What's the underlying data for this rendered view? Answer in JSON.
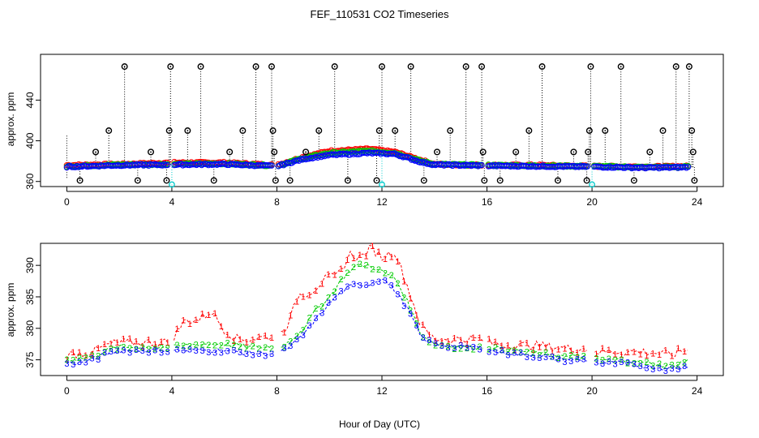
{
  "title": "FEF_110531  CO2 Timeseries",
  "xlabel": "Hour of Day (UTC)",
  "colors": {
    "black": "#000000",
    "red": "#ff0000",
    "green": "#00cc00",
    "blue": "#0000ff",
    "cyan": "#00cccc"
  },
  "chart_data": [
    {
      "type": "scatter",
      "name": "top-panel",
      "ylabel": "approx. ppm",
      "xlim": [
        -1,
        25
      ],
      "ylim": [
        355,
        485
      ],
      "x_ticks": [
        "0",
        "4",
        "8",
        "12",
        "16",
        "20",
        "24"
      ],
      "y_ticks": [
        "360",
        "400",
        "440"
      ],
      "spikes": [
        {
          "x": 0.5,
          "y": 361
        },
        {
          "x": 1.1,
          "y": 389
        },
        {
          "x": 1.6,
          "y": 410
        },
        {
          "x": 2.2,
          "y": 473
        },
        {
          "x": 2.7,
          "y": 361
        },
        {
          "x": 3.2,
          "y": 389
        },
        {
          "x": 3.8,
          "y": 361
        },
        {
          "x": 3.9,
          "y": 410
        },
        {
          "x": 3.95,
          "y": 473
        },
        {
          "x": 4.6,
          "y": 410
        },
        {
          "x": 5.1,
          "y": 473
        },
        {
          "x": 5.6,
          "y": 361
        },
        {
          "x": 6.2,
          "y": 389
        },
        {
          "x": 6.7,
          "y": 410
        },
        {
          "x": 7.2,
          "y": 473
        },
        {
          "x": 7.8,
          "y": 473
        },
        {
          "x": 7.85,
          "y": 410
        },
        {
          "x": 7.9,
          "y": 389
        },
        {
          "x": 7.95,
          "y": 361
        },
        {
          "x": 8.5,
          "y": 361
        },
        {
          "x": 9.1,
          "y": 389
        },
        {
          "x": 9.6,
          "y": 410
        },
        {
          "x": 10.2,
          "y": 473
        },
        {
          "x": 10.7,
          "y": 361
        },
        {
          "x": 11.8,
          "y": 361
        },
        {
          "x": 11.9,
          "y": 410
        },
        {
          "x": 12.0,
          "y": 473
        },
        {
          "x": 12.5,
          "y": 410
        },
        {
          "x": 13.1,
          "y": 473
        },
        {
          "x": 13.6,
          "y": 361
        },
        {
          "x": 14.1,
          "y": 389
        },
        {
          "x": 14.6,
          "y": 410
        },
        {
          "x": 15.2,
          "y": 473
        },
        {
          "x": 15.8,
          "y": 473
        },
        {
          "x": 15.85,
          "y": 389
        },
        {
          "x": 15.9,
          "y": 361
        },
        {
          "x": 16.5,
          "y": 361
        },
        {
          "x": 17.1,
          "y": 389
        },
        {
          "x": 17.6,
          "y": 410
        },
        {
          "x": 18.1,
          "y": 473
        },
        {
          "x": 18.7,
          "y": 361
        },
        {
          "x": 19.3,
          "y": 389
        },
        {
          "x": 19.8,
          "y": 361
        },
        {
          "x": 19.85,
          "y": 389
        },
        {
          "x": 19.9,
          "y": 410
        },
        {
          "x": 19.95,
          "y": 473
        },
        {
          "x": 20.5,
          "y": 410
        },
        {
          "x": 21.1,
          "y": 473
        },
        {
          "x": 21.6,
          "y": 361
        },
        {
          "x": 22.2,
          "y": 389
        },
        {
          "x": 22.7,
          "y": 410
        },
        {
          "x": 23.2,
          "y": 473
        },
        {
          "x": 23.7,
          "y": 473
        },
        {
          "x": 23.8,
          "y": 410
        },
        {
          "x": 23.85,
          "y": 389
        },
        {
          "x": 23.9,
          "y": 361
        }
      ],
      "dips": [
        {
          "x": 4.0,
          "y": 357
        },
        {
          "x": 12.0,
          "y": 357
        },
        {
          "x": 20.0,
          "y": 357
        }
      ],
      "baseline_series": [
        {
          "name": "red",
          "color": "#ff0000",
          "values": [
            [
              0,
              376
            ],
            [
              2,
              377
            ],
            [
              4,
              378.5
            ],
            [
              6,
              378.5
            ],
            [
              8,
              376
            ],
            [
              9,
              384
            ],
            [
              10,
              390
            ],
            [
              11.5,
              392
            ],
            [
              12.5,
              389
            ],
            [
              13.5,
              381
            ],
            [
              14,
              377
            ],
            [
              16,
              376
            ],
            [
              18,
              376
            ],
            [
              20,
              375
            ],
            [
              22,
              374.5
            ],
            [
              23.7,
              375
            ]
          ]
        },
        {
          "name": "green",
          "color": "#00cc00",
          "values": [
            [
              0,
              375
            ],
            [
              2,
              376.5
            ],
            [
              4,
              377
            ],
            [
              6,
              377.5
            ],
            [
              8,
              375.5
            ],
            [
              9,
              383
            ],
            [
              10,
              388
            ],
            [
              11.5,
              390
            ],
            [
              12.5,
              388
            ],
            [
              13.5,
              380
            ],
            [
              14,
              377
            ],
            [
              16,
              376
            ],
            [
              18,
              375.5
            ],
            [
              20,
              375
            ],
            [
              22,
              374
            ],
            [
              23.7,
              374.5
            ]
          ]
        },
        {
          "name": "blue",
          "color": "#0000ff",
          "values": [
            [
              0,
              374.5
            ],
            [
              2,
              376
            ],
            [
              4,
              376.5
            ],
            [
              6,
              377
            ],
            [
              8,
              375
            ],
            [
              9,
              382
            ],
            [
              10,
              386
            ],
            [
              11.5,
              388
            ],
            [
              12.5,
              387
            ],
            [
              13.5,
              379
            ],
            [
              14,
              376.5
            ],
            [
              16,
              375.5
            ],
            [
              18,
              375
            ],
            [
              20,
              374.5
            ],
            [
              22,
              373.5
            ],
            [
              23.7,
              374
            ]
          ]
        }
      ]
    },
    {
      "type": "line",
      "name": "bottom-panel",
      "ylabel": "approx. ppm",
      "xlim": [
        -1,
        25
      ],
      "ylim": [
        372.5,
        393.5
      ],
      "x_ticks": [
        "0",
        "4",
        "8",
        "12",
        "16",
        "20",
        "24"
      ],
      "y_ticks": [
        "375",
        "380",
        "385",
        "390"
      ],
      "series": [
        {
          "name": "1",
          "color": "#ff0000",
          "label": "1",
          "values": [
            [
              0,
              375.5
            ],
            [
              1,
              376
            ],
            [
              1.5,
              377
            ],
            [
              2,
              377.5
            ],
            [
              3,
              377.5
            ],
            [
              3.8,
              377.5
            ],
            [
              4,
              378
            ],
            [
              4.5,
              381
            ],
            [
              5,
              381
            ],
            [
              5.5,
              382.5
            ],
            [
              6,
              379.5
            ],
            [
              6.5,
              378
            ],
            [
              7,
              378
            ],
            [
              7.8,
              378.5
            ],
            [
              8,
              378
            ],
            [
              8.5,
              381
            ],
            [
              8.8,
              385
            ],
            [
              9.3,
              385.5
            ],
            [
              9.8,
              387.5
            ],
            [
              10.3,
              388
            ],
            [
              10.8,
              391.5
            ],
            [
              11.2,
              391
            ],
            [
              11.6,
              392.5
            ],
            [
              12,
              391
            ],
            [
              12.5,
              392
            ],
            [
              13,
              386
            ],
            [
              13.5,
              380
            ],
            [
              14,
              378
            ],
            [
              15,
              378
            ],
            [
              15.8,
              378
            ],
            [
              16,
              377.5
            ],
            [
              17,
              377
            ],
            [
              18,
              377
            ],
            [
              19,
              376.5
            ],
            [
              19.8,
              376.5
            ],
            [
              20,
              376
            ],
            [
              21,
              376
            ],
            [
              22,
              376
            ],
            [
              23,
              375.5
            ],
            [
              23.7,
              376.5
            ]
          ]
        },
        {
          "name": "2",
          "color": "#00cc00",
          "label": "2",
          "values": [
            [
              0,
              375
            ],
            [
              1,
              375.5
            ],
            [
              1.5,
              376.5
            ],
            [
              2,
              377
            ],
            [
              3,
              377
            ],
            [
              3.8,
              377
            ],
            [
              4,
              377
            ],
            [
              5,
              377.5
            ],
            [
              6,
              377.5
            ],
            [
              7,
              377
            ],
            [
              7.8,
              377
            ],
            [
              8,
              376.5
            ],
            [
              8.5,
              378
            ],
            [
              9,
              380
            ],
            [
              9.5,
              383
            ],
            [
              10,
              385
            ],
            [
              10.5,
              388
            ],
            [
              11,
              390
            ],
            [
              11.5,
              390
            ],
            [
              12,
              389
            ],
            [
              12.5,
              388
            ],
            [
              13,
              384
            ],
            [
              13.5,
              379
            ],
            [
              14,
              377.5
            ],
            [
              15,
              377
            ],
            [
              15.8,
              377
            ],
            [
              16,
              377
            ],
            [
              17,
              376.5
            ],
            [
              18,
              376
            ],
            [
              19,
              375.5
            ],
            [
              19.8,
              375.5
            ],
            [
              20,
              375
            ],
            [
              21,
              375
            ],
            [
              22,
              374.5
            ],
            [
              23,
              374
            ],
            [
              23.7,
              375
            ]
          ]
        },
        {
          "name": "3",
          "color": "#0000ff",
          "label": "3",
          "values": [
            [
              0,
              374.5
            ],
            [
              0.5,
              374.5
            ],
            [
              1,
              375
            ],
            [
              1.5,
              376
            ],
            [
              2,
              376.5
            ],
            [
              3,
              376.5
            ],
            [
              3.8,
              376.5
            ],
            [
              4,
              376.5
            ],
            [
              5,
              376.5
            ],
            [
              6,
              376.5
            ],
            [
              7,
              376
            ],
            [
              7.8,
              376
            ],
            [
              8,
              376
            ],
            [
              8.5,
              377
            ],
            [
              9,
              379
            ],
            [
              9.5,
              381.5
            ],
            [
              10,
              384
            ],
            [
              10.5,
              386
            ],
            [
              11,
              387
            ],
            [
              11.5,
              387
            ],
            [
              12,
              388
            ],
            [
              12.5,
              386
            ],
            [
              13,
              383
            ],
            [
              13.5,
              378.5
            ],
            [
              14,
              377.5
            ],
            [
              15,
              377
            ],
            [
              15.8,
              377
            ],
            [
              16,
              376.5
            ],
            [
              17,
              376
            ],
            [
              18,
              375.5
            ],
            [
              19,
              375
            ],
            [
              19.8,
              375
            ],
            [
              20,
              374.5
            ],
            [
              21,
              374.5
            ],
            [
              22,
              374
            ],
            [
              23,
              373.5
            ],
            [
              23.7,
              374
            ]
          ]
        }
      ]
    }
  ]
}
